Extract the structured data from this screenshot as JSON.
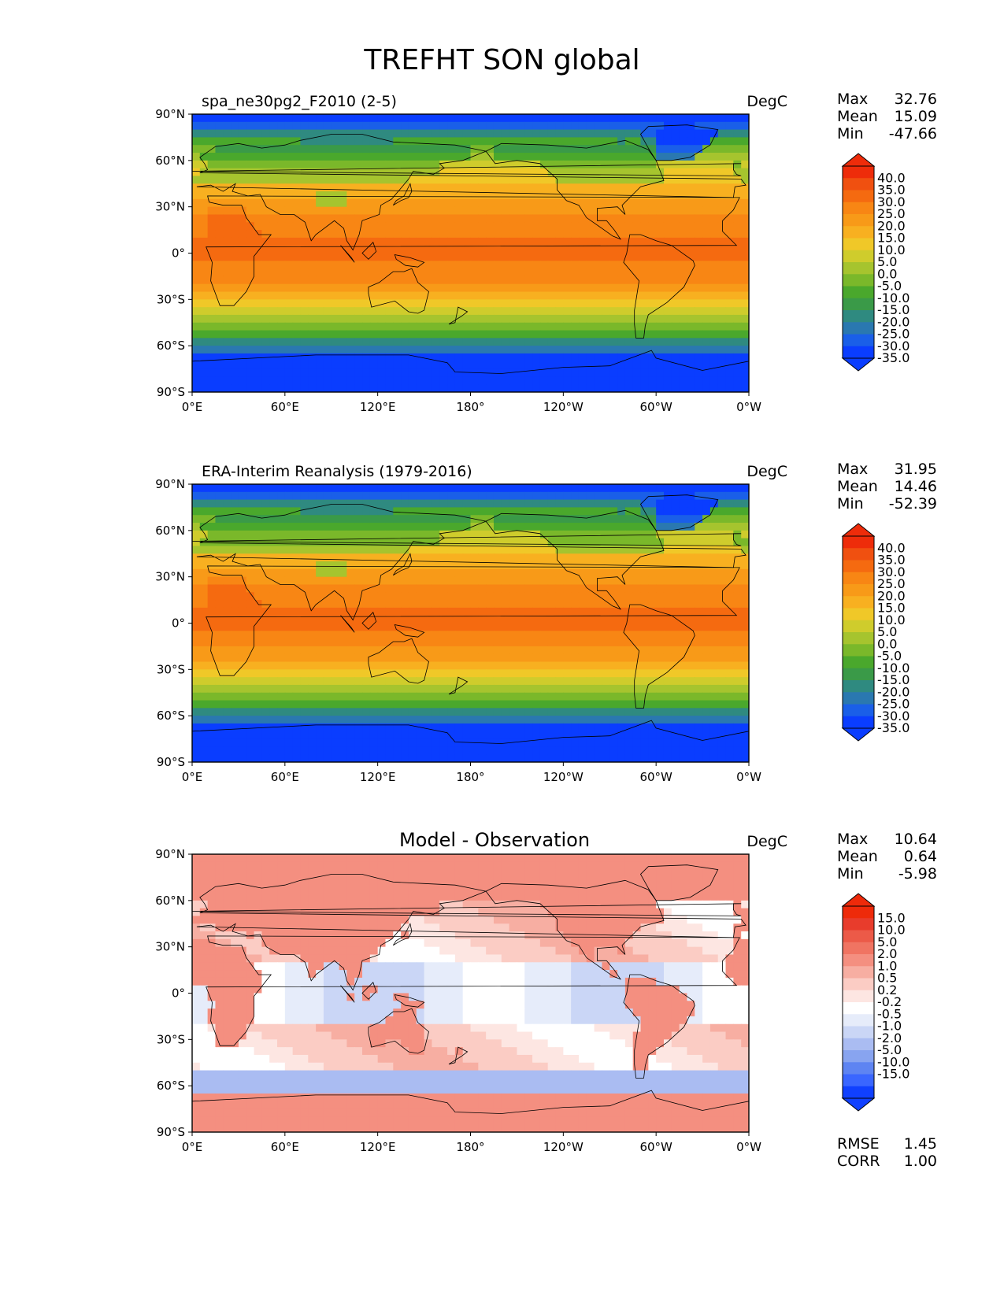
{
  "figure_title": "TREFHT SON global",
  "axes": {
    "lat_labels": [
      "90°N",
      "60°N",
      "30°N",
      "0°",
      "30°S",
      "60°S",
      "90°S"
    ],
    "lon_labels": [
      "0°E",
      "60°E",
      "120°E",
      "180°",
      "120°W",
      "60°W",
      "0°W"
    ]
  },
  "colors": {
    "abs_scale": [
      "#0a3dff",
      "#1a5fe8",
      "#2a78b0",
      "#2f8a80",
      "#3a9a48",
      "#4aa82c",
      "#7ab82a",
      "#a6c42e",
      "#cfcc2c",
      "#f0c828",
      "#f8b020",
      "#f89a18",
      "#f88614",
      "#f56a10",
      "#f05010",
      "#ee2c0a"
    ],
    "diff_scale": [
      "#1040ff",
      "#3a66ff",
      "#5e84f2",
      "#88a4f0",
      "#aabcf2",
      "#cad6f6",
      "#e6ecfa",
      "#ffffff",
      "#fde6e2",
      "#fbccc4",
      "#f7aea2",
      "#f48f80",
      "#f07462",
      "#ec5a48",
      "#e83c2c",
      "#ee2a0a"
    ],
    "ocean_frame": "#000000"
  },
  "panels": [
    {
      "left_title": "spa_ne30pg2_F2010 (2-5)",
      "center_title": "",
      "units": "DegC",
      "stats": [
        {
          "label": "Max",
          "value": "32.76"
        },
        {
          "label": "Mean",
          "value": "15.09"
        },
        {
          "label": "Min",
          "value": "-47.66"
        }
      ],
      "colorbar_labels": [
        "40.0",
        "35.0",
        "30.0",
        "25.0",
        "20.0",
        "15.0",
        "10.0",
        "5.0",
        "0.0",
        "-5.0",
        "-10.0",
        "-15.0",
        "-20.0",
        "-25.0",
        "-30.0",
        "-35.0"
      ],
      "field": "model",
      "extra": []
    },
    {
      "left_title": "ERA-Interim Reanalysis (1979-2016)",
      "center_title": "",
      "units": "DegC",
      "stats": [
        {
          "label": "Max",
          "value": "31.95"
        },
        {
          "label": "Mean",
          "value": "14.46"
        },
        {
          "label": "Min",
          "value": "-52.39"
        }
      ],
      "colorbar_labels": [
        "40.0",
        "35.0",
        "30.0",
        "25.0",
        "20.0",
        "15.0",
        "10.0",
        "5.0",
        "0.0",
        "-5.0",
        "-10.0",
        "-15.0",
        "-20.0",
        "-25.0",
        "-30.0",
        "-35.0"
      ],
      "field": "obs",
      "extra": []
    },
    {
      "left_title": "",
      "center_title": "Model - Observation",
      "units": "DegC",
      "stats": [
        {
          "label": "Max",
          "value": "10.64"
        },
        {
          "label": "Mean",
          "value": "0.64"
        },
        {
          "label": "Min",
          "value": "-5.98"
        }
      ],
      "colorbar_labels": [
        "15.0",
        "10.0",
        "5.0",
        "2.0",
        "1.0",
        "0.5",
        "0.2",
        "-0.2",
        "-0.5",
        "-1.0",
        "-2.0",
        "-5.0",
        "-10.0",
        "-15.0"
      ],
      "field": "diff",
      "extra": [
        {
          "label": "RMSE",
          "value": "1.45"
        },
        {
          "label": "CORR",
          "value": "1.00"
        }
      ]
    }
  ]
}
